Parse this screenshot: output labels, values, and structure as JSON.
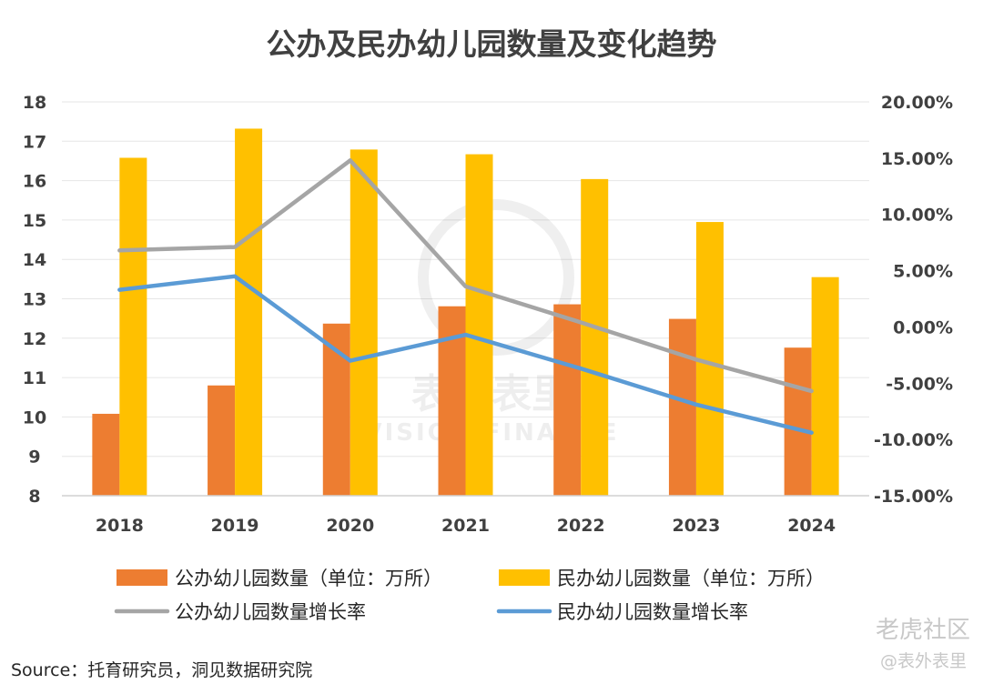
{
  "chart_data": {
    "type": "bar",
    "title": "公办及民办幼儿园数量及变化趋势",
    "categories": [
      "2018",
      "2019",
      "2020",
      "2021",
      "2022",
      "2023",
      "2024"
    ],
    "y_left": {
      "ylim": [
        8,
        18
      ],
      "ticks": [
        "8",
        "9",
        "10",
        "11",
        "12",
        "13",
        "14",
        "15",
        "16",
        "17",
        "18"
      ]
    },
    "y_right": {
      "ylim": [
        -0.15,
        0.2
      ],
      "ticks": [
        "-15.00%",
        "-10.00%",
        "-5.00%",
        "0.00%",
        "5.00%",
        "10.00%",
        "15.00%",
        "20.00%"
      ]
    },
    "bar_series": [
      {
        "name": "公办幼儿园数量（单位：万所）",
        "color": "#ed7d31",
        "values": [
          10.08,
          10.8,
          12.37,
          12.81,
          12.86,
          12.49,
          11.76
        ]
      },
      {
        "name": "民办幼儿园数量（单位：万所）",
        "color": "#ffc000",
        "values": [
          16.58,
          17.32,
          16.79,
          16.67,
          16.04,
          14.95,
          13.55
        ]
      }
    ],
    "line_series": [
      {
        "name": "公办幼儿园数量增长率",
        "color": "#a5a5a5",
        "axis": "right",
        "values": [
          0.068,
          0.071,
          0.148,
          0.036,
          0.004,
          -0.029,
          -0.057
        ]
      },
      {
        "name": "民办幼儿园数量增长率",
        "color": "#5b9bd5",
        "axis": "right",
        "values": [
          0.033,
          0.045,
          -0.03,
          -0.007,
          -0.037,
          -0.069,
          -0.094
        ]
      }
    ],
    "legend_position": "bottom",
    "grid": true
  },
  "source_text": "Source：托育研究员，洞见数据研究院",
  "watermark_center_cn": "表外表里",
  "watermark_center_en": "VISION FINANCE",
  "watermark_corner": "老虎社区",
  "watermark_corner_sub": "@表外表里"
}
